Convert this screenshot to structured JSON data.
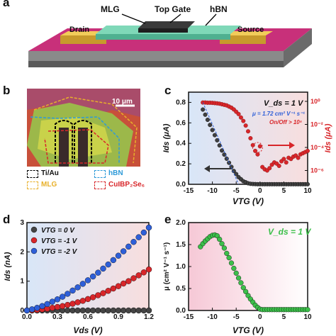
{
  "panels": {
    "a": {
      "letter": "a",
      "labels": {
        "mlg": "MLG",
        "top_gate": "Top Gate",
        "hbn": "hBN",
        "drain": "Drain",
        "source": "Source"
      }
    },
    "b": {
      "letter": "b",
      "scalebar": "10 μm",
      "legend": [
        {
          "name": "Ti/Au",
          "color": "#000000"
        },
        {
          "name": "hBN",
          "color": "#2e9ad8"
        },
        {
          "name": "MLG",
          "color": "#e8b02a"
        },
        {
          "name": "CuIBP₂Se₆",
          "color": "#d8262a"
        }
      ]
    },
    "c": {
      "letter": "c",
      "annotation_vds": "V_ds = 1 V",
      "annotation_mu": "μ = 1.72 cm² V⁻¹ s⁻¹",
      "annotation_onoff": "On/Off > 10⁵"
    },
    "d": {
      "letter": "d"
    },
    "e": {
      "letter": "e",
      "annotation_vds": "V_ds = 1 V"
    }
  },
  "chart_data": [
    {
      "panel": "c",
      "type": "scatter",
      "xlabel": "V_TG (V)",
      "ylabel": "I_ds (μA)",
      "ylabel_right": "I_ds (μA)",
      "xlim": [
        -15,
        10
      ],
      "ylim": [
        0,
        0.9
      ],
      "xticks": [
        "-15",
        "-10",
        "-5",
        "0",
        "5",
        "10"
      ],
      "yticks": [
        "0.0",
        "0.2",
        "0.4",
        "0.6",
        "0.8"
      ],
      "yticks_right": [
        "10⁰",
        "10⁻²",
        "10⁻⁴",
        "10⁻⁶"
      ],
      "log_right": true,
      "ylim_right_log": [
        -7.2,
        0.8
      ],
      "series": [
        {
          "axis": "left",
          "color": "#404040",
          "x": [
            -12,
            -11.5,
            -11,
            -10.5,
            -10,
            -9.5,
            -9,
            -8.5,
            -8,
            -7.5,
            -7,
            -6.5,
            -6,
            -5.5,
            -5,
            -4.5,
            -4,
            -3.5,
            -3,
            -2.5,
            -2,
            -1.5,
            -1,
            -0.5,
            0,
            0.5,
            1,
            1.5,
            2,
            2.5,
            3,
            3.5,
            4,
            4.5,
            5,
            5.5,
            6,
            6.5,
            7,
            7.5,
            8,
            8.5,
            9,
            9.5,
            10
          ],
          "y": [
            0.73,
            0.68,
            0.63,
            0.58,
            0.53,
            0.48,
            0.43,
            0.38,
            0.33,
            0.29,
            0.25,
            0.21,
            0.17,
            0.13,
            0.1,
            0.07,
            0.05,
            0.03,
            0.02,
            0.01,
            0.005,
            0.003,
            0.002,
            0.001,
            0.001,
            0.001,
            0.001,
            0.001,
            0.001,
            0.001,
            0.001,
            0.001,
            0.001,
            0.001,
            0.001,
            0.001,
            0.001,
            0.001,
            0.001,
            0.001,
            0.001,
            0.001,
            0.001,
            0.001,
            0.001
          ]
        },
        {
          "axis": "right",
          "color": "#d8262a",
          "x": [
            -12,
            -11.5,
            -11,
            -10.5,
            -10,
            -9.5,
            -9,
            -8.5,
            -8,
            -7.5,
            -7,
            -6.5,
            -6,
            -5.5,
            -5,
            -4.5,
            -4,
            -3.5,
            -3,
            -2.5,
            -2,
            -1.5,
            -1,
            -0.5,
            0,
            0.5,
            1,
            1.5,
            2,
            2.5,
            3,
            3.5,
            4,
            4.5,
            5,
            5.5,
            6,
            6.5,
            7,
            7.5,
            8,
            8.5,
            9,
            9.5,
            10
          ],
          "log10y": [
            -0.1,
            -0.1,
            -0.12,
            -0.12,
            -0.13,
            -0.15,
            -0.17,
            -0.2,
            -0.25,
            -0.3,
            -0.35,
            -0.45,
            -0.55,
            -0.7,
            -0.9,
            -1.1,
            -1.4,
            -1.7,
            -2.1,
            -2.6,
            -3.2,
            -3.8,
            -4.3,
            -4.6,
            -3.9,
            -5.7,
            -5.9,
            -6.0,
            -5.8,
            -5.5,
            -5.3,
            -5.4,
            -5.6,
            -5.2,
            -5.0,
            -5.3,
            -4.9,
            -5.0,
            -4.8,
            -4.7,
            -4.9,
            -4.6,
            -4.5,
            -4.4,
            -4.3
          ]
        }
      ],
      "annotations": [
        "V_ds = 1 V",
        "μ = 1.72 cm² V⁻¹ s⁻¹",
        "On/Off > 10⁵"
      ]
    },
    {
      "panel": "d",
      "type": "scatter",
      "xlabel": "V_ds (V)",
      "ylabel": "I_ds (nA)",
      "xlim": [
        0,
        1.2
      ],
      "ylim": [
        0,
        3
      ],
      "xticks": [
        "0.0",
        "0.3",
        "0.6",
        "0.9",
        "1.2"
      ],
      "yticks": [
        "0",
        "1",
        "2",
        "3"
      ],
      "series": [
        {
          "name": "V_TG = 0 V",
          "color": "#444444",
          "x": [
            0,
            0.05,
            0.1,
            0.15,
            0.2,
            0.25,
            0.3,
            0.35,
            0.4,
            0.45,
            0.5,
            0.55,
            0.6,
            0.65,
            0.7,
            0.75,
            0.8,
            0.85,
            0.9,
            0.95,
            1.0,
            1.05,
            1.1,
            1.15,
            1.2
          ],
          "y": [
            0,
            0,
            0,
            0,
            0,
            0,
            0,
            0,
            0,
            0,
            0,
            0,
            0,
            0,
            0,
            0,
            0,
            0,
            0,
            0,
            0,
            0,
            0,
            0,
            0
          ]
        },
        {
          "name": "V_TG = -1 V",
          "color": "#d8262a",
          "x": [
            0,
            0.05,
            0.1,
            0.15,
            0.2,
            0.25,
            0.3,
            0.35,
            0.4,
            0.45,
            0.5,
            0.55,
            0.6,
            0.65,
            0.7,
            0.75,
            0.8,
            0.85,
            0.9,
            0.95,
            1.0,
            1.05,
            1.1,
            1.15,
            1.2
          ],
          "y": [
            0,
            0.01,
            0.02,
            0.04,
            0.06,
            0.09,
            0.12,
            0.15,
            0.19,
            0.23,
            0.28,
            0.33,
            0.39,
            0.45,
            0.52,
            0.59,
            0.67,
            0.75,
            0.83,
            0.92,
            1.0,
            1.1,
            1.2,
            1.3,
            1.4
          ]
        },
        {
          "name": "V_TG = -2 V",
          "color": "#2e5fd8",
          "x": [
            0,
            0.05,
            0.1,
            0.15,
            0.2,
            0.25,
            0.3,
            0.35,
            0.4,
            0.45,
            0.5,
            0.55,
            0.6,
            0.65,
            0.7,
            0.75,
            0.8,
            0.85,
            0.9,
            0.95,
            1.0,
            1.05,
            1.1,
            1.15,
            1.2
          ],
          "y": [
            0,
            0.04,
            0.09,
            0.15,
            0.22,
            0.3,
            0.38,
            0.47,
            0.57,
            0.68,
            0.79,
            0.91,
            1.03,
            1.16,
            1.29,
            1.43,
            1.57,
            1.72,
            1.87,
            2.02,
            2.18,
            2.34,
            2.5,
            2.66,
            2.83
          ]
        }
      ]
    },
    {
      "panel": "e",
      "type": "scatter",
      "xlabel": "V_TG (V)",
      "ylabel": "μ (cm² V⁻¹ s⁻¹)",
      "xlim": [
        -15,
        10
      ],
      "ylim": [
        0,
        2.0
      ],
      "xticks": [
        "-15",
        "-10",
        "-5",
        "0",
        "5",
        "10"
      ],
      "yticks": [
        "0.0",
        "0.5",
        "1.0",
        "1.5",
        "2.0"
      ],
      "series": [
        {
          "color": "#3cbf4a",
          "x": [
            -12.5,
            -12,
            -11.5,
            -11,
            -10.5,
            -10,
            -9.5,
            -9,
            -8.5,
            -8,
            -7.5,
            -7,
            -6.5,
            -6,
            -5.5,
            -5,
            -4.5,
            -4,
            -3.5,
            -3,
            -2.5,
            -2,
            -1.5,
            -1,
            -0.5,
            0,
            0.5,
            1,
            1.5,
            2,
            2.5,
            3,
            3.5,
            4,
            4.5,
            5,
            5.5,
            6,
            6.5,
            7,
            7.5,
            8,
            8.5,
            9,
            9.5,
            10
          ],
          "y": [
            1.45,
            1.52,
            1.58,
            1.63,
            1.68,
            1.71,
            1.72,
            1.7,
            1.62,
            1.52,
            1.42,
            1.3,
            1.2,
            1.08,
            0.96,
            0.85,
            0.74,
            0.63,
            0.52,
            0.43,
            0.34,
            0.26,
            0.19,
            0.12,
            0.07,
            0.03,
            0.02,
            0.02,
            0.02,
            0.02,
            0.02,
            0.02,
            0.02,
            0.02,
            0.02,
            0.02,
            0.02,
            0.02,
            0.02,
            0.02,
            0.02,
            0.02,
            0.02,
            0.02,
            0.02,
            0.02
          ]
        }
      ],
      "annotations": [
        "V_ds = 1 V"
      ]
    }
  ]
}
